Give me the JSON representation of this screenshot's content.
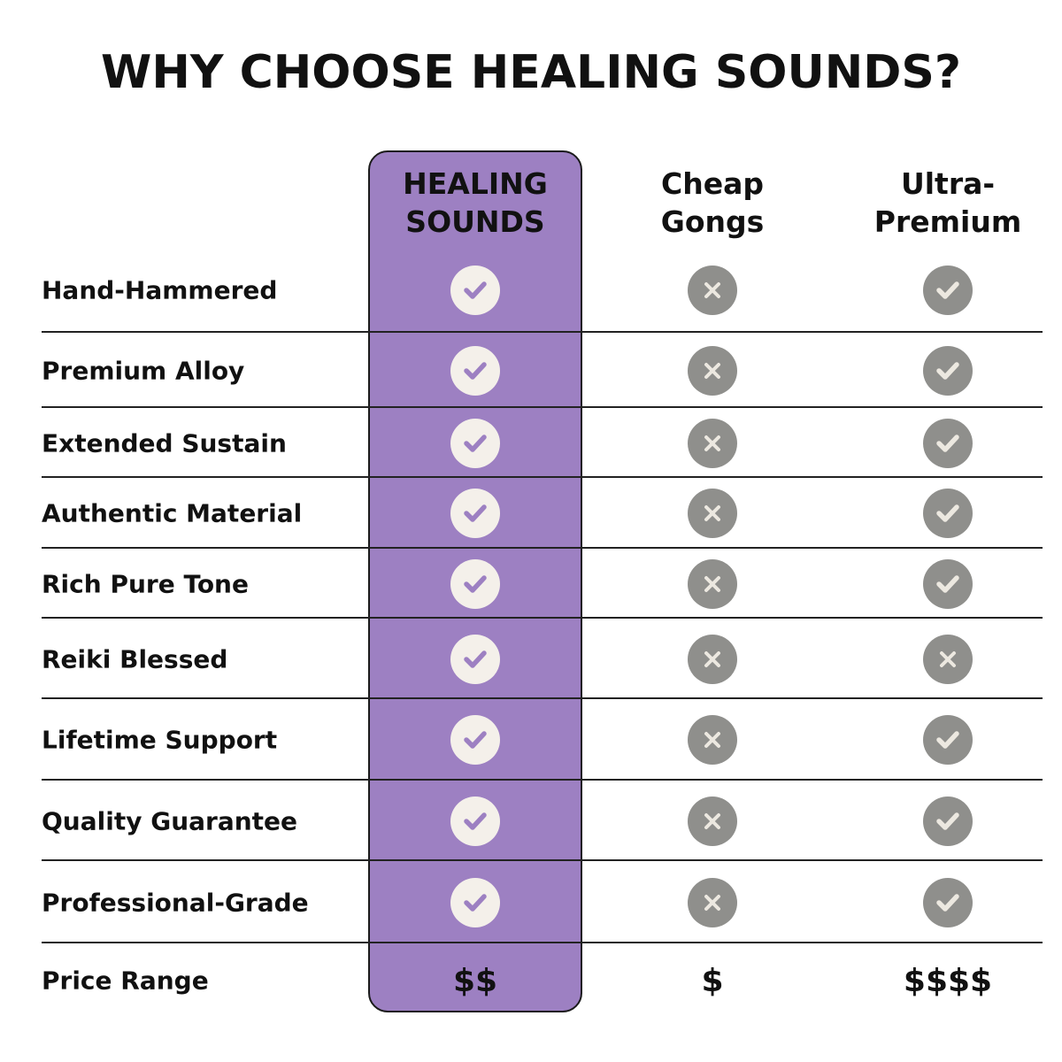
{
  "title": "WHY CHOOSE HEALING SOUNDS?",
  "columns": [
    "HEALING SOUNDS",
    "Cheap Gongs",
    "Ultra-Premium"
  ],
  "column_lines": [
    [
      "HEALING",
      "SOUNDS"
    ],
    [
      "Cheap",
      "Gongs"
    ],
    [
      "Ultra-",
      "Premium"
    ]
  ],
  "colors": {
    "highlight": "#9d80c2",
    "check_circle": "#f4f0ea",
    "gray_circle": "#8f8f8c",
    "mark_light": "#ece8e0"
  },
  "rows": [
    {
      "label": "Hand-Hammered",
      "values": [
        "check",
        "x",
        "check"
      ]
    },
    {
      "label": "Premium Alloy",
      "values": [
        "check",
        "x",
        "check"
      ]
    },
    {
      "label": "Extended Sustain",
      "values": [
        "check",
        "x",
        "check"
      ]
    },
    {
      "label": "Authentic Material",
      "values": [
        "check",
        "x",
        "check"
      ]
    },
    {
      "label": "Rich Pure Tone",
      "values": [
        "check",
        "x",
        "check"
      ]
    },
    {
      "label": "Reiki Blessed",
      "values": [
        "check",
        "x",
        "x"
      ]
    },
    {
      "label": "Lifetime Support",
      "values": [
        "check",
        "x",
        "check"
      ]
    },
    {
      "label": "Quality Guarantee",
      "values": [
        "check",
        "x",
        "check"
      ]
    },
    {
      "label": "Professional-Grade",
      "values": [
        "check",
        "x",
        "check"
      ]
    }
  ],
  "price_row": {
    "label": "Price Range",
    "values": [
      "$$",
      "$",
      "$$$$"
    ]
  }
}
